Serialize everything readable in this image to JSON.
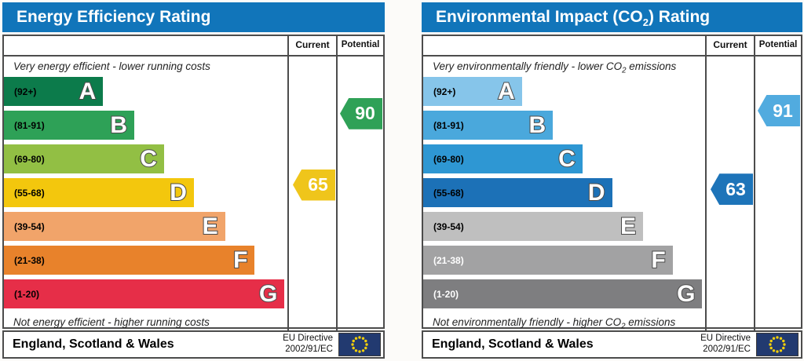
{
  "chart_data": [
    {
      "type": "bar",
      "title": "Energy Efficiency Rating",
      "categories": [
        "A (92+)",
        "B (81-91)",
        "C (69-80)",
        "D (55-68)",
        "E (39-54)",
        "F (21-38)",
        "G (1-20)"
      ],
      "values": [
        35,
        46,
        56.5,
        67,
        78,
        88.5,
        99
      ],
      "ylabel": "",
      "xlabel": "",
      "legend": [
        "Current",
        "Potential"
      ],
      "current_rating": 65,
      "current_band": "D",
      "potential_rating": 90,
      "potential_band": "B",
      "top_note": "Very energy efficient - lower running costs",
      "bottom_note": "Not energy efficient - higher running costs",
      "region_note": "England, Scotland & Wales",
      "directive_note": "EU Directive 2002/91/EC"
    },
    {
      "type": "bar",
      "title": "Environmental Impact (CO2) Rating",
      "categories": [
        "A (92+)",
        "B (81-91)",
        "C (69-80)",
        "D (55-68)",
        "E (39-54)",
        "F (21-38)",
        "G (1-20)"
      ],
      "values": [
        35,
        46,
        56.5,
        67,
        78,
        88.5,
        99
      ],
      "ylabel": "",
      "xlabel": "",
      "legend": [
        "Current",
        "Potential"
      ],
      "current_rating": 63,
      "current_band": "D",
      "potential_rating": 91,
      "potential_band": "B",
      "top_note": "Very environmentally friendly - lower CO2 emissions",
      "bottom_note": "Not environmentally friendly - higher CO2 emissions",
      "region_note": "England, Scotland & Wales",
      "directive_note": "EU Directive 2002/91/EC"
    }
  ],
  "charts": [
    {
      "title_pre": "Energy Efficiency Rating",
      "title_sub": "",
      "title_post": "",
      "header_color": "#1175ba",
      "columns": {
        "current": "Current",
        "potential": "Potential"
      },
      "caption_top": {
        "pre": "Very energy efficient - lower running costs",
        "sub": "",
        "post": ""
      },
      "caption_bottom": {
        "pre": "Not energy efficient - higher running costs",
        "sub": "",
        "post": ""
      },
      "bands": [
        {
          "letter": "A",
          "range": "(92+)",
          "lo": 92,
          "hi": 100,
          "color": "#0c7b4b",
          "width_pct": 35,
          "label_color": "#000000"
        },
        {
          "letter": "B",
          "range": "(81-91)",
          "lo": 81,
          "hi": 91,
          "color": "#2ea157",
          "width_pct": 46,
          "label_color": "#000000"
        },
        {
          "letter": "C",
          "range": "(69-80)",
          "lo": 69,
          "hi": 80,
          "color": "#92bf44",
          "width_pct": 56.5,
          "label_color": "#000000"
        },
        {
          "letter": "D",
          "range": "(55-68)",
          "lo": 55,
          "hi": 68,
          "color": "#f3c70d",
          "width_pct": 67,
          "label_color": "#000000"
        },
        {
          "letter": "E",
          "range": "(39-54)",
          "lo": 39,
          "hi": 54,
          "color": "#f1a46a",
          "width_pct": 78,
          "label_color": "#000000"
        },
        {
          "letter": "F",
          "range": "(21-38)",
          "lo": 21,
          "hi": 38,
          "color": "#e8822b",
          "width_pct": 88.5,
          "label_color": "#000000"
        },
        {
          "letter": "G",
          "range": "(1-20)",
          "lo": 1,
          "hi": 20,
          "color": "#e62e48",
          "width_pct": 99,
          "label_color": "#000000"
        }
      ],
      "current": {
        "value": 65,
        "label": "65",
        "band_index": 3,
        "color": "#efc51b"
      },
      "potential": {
        "value": 90,
        "label": "90",
        "band_index": 1,
        "color": "#2fa157"
      },
      "footer": {
        "region": "England, Scotland & Wales",
        "directive_line1": "EU Directive",
        "directive_line2": "2002/91/EC"
      }
    },
    {
      "title_pre": "Environmental Impact (CO",
      "title_sub": "2",
      "title_post": ") Rating",
      "header_color": "#1175ba",
      "columns": {
        "current": "Current",
        "potential": "Potential"
      },
      "caption_top": {
        "pre": "Very environmentally friendly - lower CO",
        "sub": "2",
        "post": " emissions"
      },
      "caption_bottom": {
        "pre": "Not environmentally friendly - higher CO",
        "sub": "2",
        "post": " emissions"
      },
      "bands": [
        {
          "letter": "A",
          "range": "(92+)",
          "lo": 92,
          "hi": 100,
          "color": "#86c5ea",
          "width_pct": 35,
          "label_color": "#000000"
        },
        {
          "letter": "B",
          "range": "(81-91)",
          "lo": 81,
          "hi": 91,
          "color": "#4aa8dc",
          "width_pct": 46,
          "label_color": "#000000"
        },
        {
          "letter": "C",
          "range": "(69-80)",
          "lo": 69,
          "hi": 80,
          "color": "#2e97d3",
          "width_pct": 56.5,
          "label_color": "#000000"
        },
        {
          "letter": "D",
          "range": "(55-68)",
          "lo": 55,
          "hi": 68,
          "color": "#1c71b7",
          "width_pct": 67,
          "label_color": "#000000"
        },
        {
          "letter": "E",
          "range": "(39-54)",
          "lo": 39,
          "hi": 54,
          "color": "#bfbfbf",
          "width_pct": 78,
          "label_color": "#000000"
        },
        {
          "letter": "F",
          "range": "(21-38)",
          "lo": 21,
          "hi": 38,
          "color": "#a2a2a3",
          "width_pct": 88.5,
          "label_color": "#ffffff"
        },
        {
          "letter": "G",
          "range": "(1-20)",
          "lo": 1,
          "hi": 20,
          "color": "#7e7e80",
          "width_pct": 99,
          "label_color": "#ffffff"
        }
      ],
      "current": {
        "value": 63,
        "label": "63",
        "band_index": 3,
        "color": "#1d74b9"
      },
      "potential": {
        "value": 91,
        "label": "91",
        "band_index": 1,
        "color": "#51abdf"
      },
      "footer": {
        "region": "England, Scotland & Wales",
        "directive_line1": "EU Directive",
        "directive_line2": "2002/91/EC"
      }
    }
  ],
  "eu_flag": {
    "bg": "#223a70",
    "star": "#f2cf0c",
    "name": "eu-flag"
  }
}
